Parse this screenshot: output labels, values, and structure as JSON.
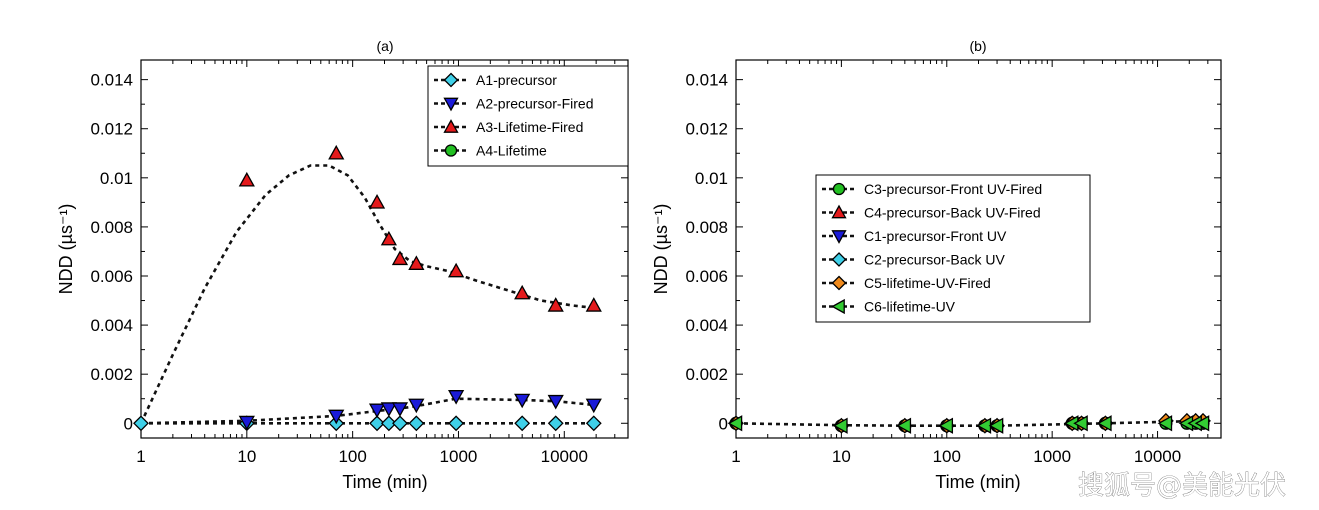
{
  "watermark": "搜狐号@美能光伏",
  "colors": {
    "cyan": "#3fd0e8",
    "blue": "#1a1ad8",
    "red": "#e41a1c",
    "green": "#22c022",
    "orange": "#f08a1c",
    "green2": "#33cc33"
  },
  "chart_data": [
    {
      "type": "scatter",
      "title": "(a)",
      "xlabel": "Time (min)",
      "ylabel": "NDD (µs⁻¹)",
      "xscale": "log",
      "xlim": [
        1,
        40000
      ],
      "ylim": [
        -0.0006,
        0.0148
      ],
      "xticks": [
        1,
        10,
        100,
        1000,
        10000
      ],
      "xtick_labels": [
        "1",
        "10",
        "100",
        "1000",
        "10000"
      ],
      "yticks": [
        0,
        0.002,
        0.004,
        0.006,
        0.008,
        0.01,
        0.012,
        0.014
      ],
      "ytick_labels": [
        "0",
        "0.002",
        "0.004",
        "0.006",
        "0.008",
        "0.01",
        "0.012",
        "0.014"
      ],
      "legend_position": "top-right",
      "series": [
        {
          "name": "A1-precursor",
          "marker": "diamond",
          "color": "#3fd0e8",
          "x": [
            1,
            10,
            70,
            170,
            220,
            280,
            400,
            950,
            4000,
            8300,
            19000
          ],
          "y": [
            0,
            0,
            0,
            0,
            0,
            0,
            0,
            0,
            0,
            0,
            0
          ]
        },
        {
          "name": "A2-precursor-Fired",
          "marker": "triangle-down",
          "color": "#1a1ad8",
          "x": [
            10,
            70,
            170,
            220,
            280,
            400,
            950,
            4000,
            8300,
            19000
          ],
          "y": [
            5e-05,
            0.0003,
            0.00055,
            0.0006,
            0.0006,
            0.00075,
            0.0011,
            0.00095,
            0.0009,
            0.00075
          ]
        },
        {
          "name": "A3-Lifetime-Fired",
          "marker": "triangle-up",
          "color": "#e41a1c",
          "x": [
            10,
            70,
            170,
            220,
            280,
            400,
            950,
            4000,
            8300,
            19000
          ],
          "y": [
            0.0099,
            0.011,
            0.009,
            0.0075,
            0.0067,
            0.0065,
            0.0062,
            0.0053,
            0.0048,
            0.0048
          ]
        },
        {
          "name": "A4-Lifetime",
          "marker": "circle",
          "color": "#22c022",
          "x": [],
          "y": []
        }
      ],
      "fit_lines": [
        {
          "x": [
            1,
            2,
            4,
            8,
            15,
            25,
            40,
            60,
            90,
            130,
            180,
            250,
            350,
            500,
            800,
            1500,
            3000,
            6000,
            12000,
            19000
          ],
          "y": [
            0,
            0.0028,
            0.0055,
            0.0078,
            0.0093,
            0.0101,
            0.0105,
            0.0105,
            0.0101,
            0.0092,
            0.0081,
            0.0071,
            0.0066,
            0.0064,
            0.0062,
            0.0058,
            0.0054,
            0.005,
            0.0048,
            0.0047
          ]
        },
        {
          "x": [
            1,
            10,
            70,
            170,
            280,
            400,
            950,
            4000,
            8300,
            19000
          ],
          "y": [
            0,
            0.0001,
            0.0003,
            0.0005,
            0.0006,
            0.0007,
            0.001,
            0.00095,
            0.0009,
            0.00075
          ]
        },
        {
          "x": [
            1,
            19000
          ],
          "y": [
            0,
            0
          ]
        }
      ]
    },
    {
      "type": "scatter",
      "title": "(b)",
      "xlabel": "Time (min)",
      "ylabel": "NDD (µs⁻¹)",
      "xscale": "log",
      "xlim": [
        1,
        40000
      ],
      "ylim": [
        -0.0006,
        0.0148
      ],
      "xticks": [
        1,
        10,
        100,
        1000,
        10000
      ],
      "xtick_labels": [
        "1",
        "10",
        "100",
        "1000",
        "10000"
      ],
      "yticks": [
        0,
        0.002,
        0.004,
        0.006,
        0.008,
        0.01,
        0.012,
        0.014
      ],
      "ytick_labels": [
        "0",
        "0.002",
        "0.004",
        "0.006",
        "0.008",
        "0.01",
        "0.012",
        "0.014"
      ],
      "legend_position": "center",
      "series": [
        {
          "name": "C3-precursor-Front UV-Fired",
          "marker": "circle",
          "color": "#22c022",
          "x": [
            1,
            10,
            40,
            100,
            230,
            300,
            1550,
            1900,
            3200,
            12000,
            19000,
            23000,
            27000
          ],
          "y": [
            0,
            -0.0001,
            -0.0001,
            -0.0001,
            -0.0001,
            -0.0001,
            0,
            0,
            0,
            0,
            0,
            0,
            0
          ]
        },
        {
          "name": "C4-precursor-Back UV-Fired",
          "marker": "triangle-up",
          "color": "#e41a1c",
          "x": [],
          "y": []
        },
        {
          "name": "C1-precursor-Front UV",
          "marker": "triangle-down",
          "color": "#1a1ad8",
          "x": [],
          "y": []
        },
        {
          "name": "C2-precursor-Back UV",
          "marker": "diamond",
          "color": "#3fd0e8",
          "x": [],
          "y": []
        },
        {
          "name": "C5-lifetime-UV-Fired",
          "marker": "diamond",
          "color": "#f08a1c",
          "x": [
            1,
            10,
            40,
            100,
            230,
            300,
            1550,
            1900,
            3200,
            12000,
            19000,
            23000,
            27000
          ],
          "y": [
            0,
            -0.0001,
            -0.0001,
            -0.0001,
            -0.0001,
            -0.0001,
            0,
            0,
            0,
            0.0001,
            0.0001,
            0.0001,
            0.0001
          ]
        },
        {
          "name": "C6-lifetime-UV",
          "marker": "triangle-left",
          "color": "#33cc33",
          "x": [
            1,
            10,
            40,
            100,
            230,
            300,
            1550,
            1900,
            3200,
            12000,
            19000,
            23000,
            27000
          ],
          "y": [
            0,
            -0.0001,
            -0.0001,
            -0.0001,
            -0.0001,
            -0.0001,
            0,
            0,
            0,
            0,
            0,
            0,
            0
          ]
        }
      ],
      "fit_lines": [
        {
          "x": [
            1,
            10,
            40,
            100,
            300,
            1000,
            3200,
            10000,
            27000
          ],
          "y": [
            0,
            -8e-05,
            -0.0001,
            -0.0001,
            -0.0001,
            -5e-05,
            0,
            5e-05,
            0.0001
          ]
        }
      ]
    }
  ]
}
